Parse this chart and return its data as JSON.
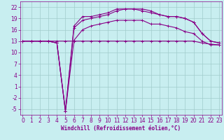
{
  "xlabel": "Windchill (Refroidissement éolien,°C)",
  "bg_color": "#c8eef0",
  "grid_color": "#a0cccc",
  "line_color": "#880088",
  "x": [
    0,
    1,
    2,
    3,
    4,
    5,
    6,
    7,
    8,
    9,
    10,
    11,
    12,
    13,
    14,
    15,
    16,
    17,
    18,
    19,
    20,
    21,
    22,
    23
  ],
  "series": [
    [
      13.0,
      13.0,
      13.0,
      13.0,
      13.0,
      13.0,
      13.0,
      13.0,
      13.0,
      13.0,
      13.0,
      13.0,
      13.0,
      13.0,
      13.0,
      13.0,
      13.0,
      13.0,
      13.0,
      13.0,
      13.0,
      12.5,
      12.2,
      12.0
    ],
    [
      13.0,
      13.0,
      13.0,
      13.0,
      12.5,
      -5.5,
      13.2,
      16.0,
      17.0,
      17.5,
      18.0,
      18.5,
      18.5,
      18.5,
      18.5,
      17.5,
      17.5,
      17.0,
      16.5,
      15.5,
      15.0,
      13.0,
      12.0,
      12.0
    ],
    [
      13.0,
      13.0,
      13.0,
      13.0,
      12.5,
      -5.5,
      16.5,
      18.5,
      19.0,
      19.5,
      20.0,
      21.0,
      21.5,
      21.5,
      21.0,
      20.5,
      20.0,
      19.5,
      19.5,
      19.0,
      18.0,
      15.0,
      13.0,
      12.5
    ],
    [
      13.0,
      13.0,
      13.0,
      13.0,
      12.5,
      -5.5,
      17.0,
      19.5,
      19.5,
      20.0,
      20.5,
      21.5,
      21.5,
      21.5,
      21.5,
      21.0,
      20.0,
      19.5,
      19.5,
      19.0,
      18.0,
      15.0,
      13.0,
      12.5
    ]
  ],
  "ylim": [
    -6.5,
    23.5
  ],
  "xlim": [
    -0.3,
    23.3
  ],
  "yticks": [
    -5,
    -2,
    1,
    4,
    7,
    10,
    13,
    16,
    19,
    22
  ],
  "xticks": [
    0,
    1,
    2,
    3,
    4,
    5,
    6,
    7,
    8,
    9,
    10,
    11,
    12,
    13,
    14,
    15,
    16,
    17,
    18,
    19,
    20,
    21,
    22,
    23
  ],
  "marker": "+",
  "tick_fontsize": 5.5,
  "xlabel_fontsize": 5.5
}
